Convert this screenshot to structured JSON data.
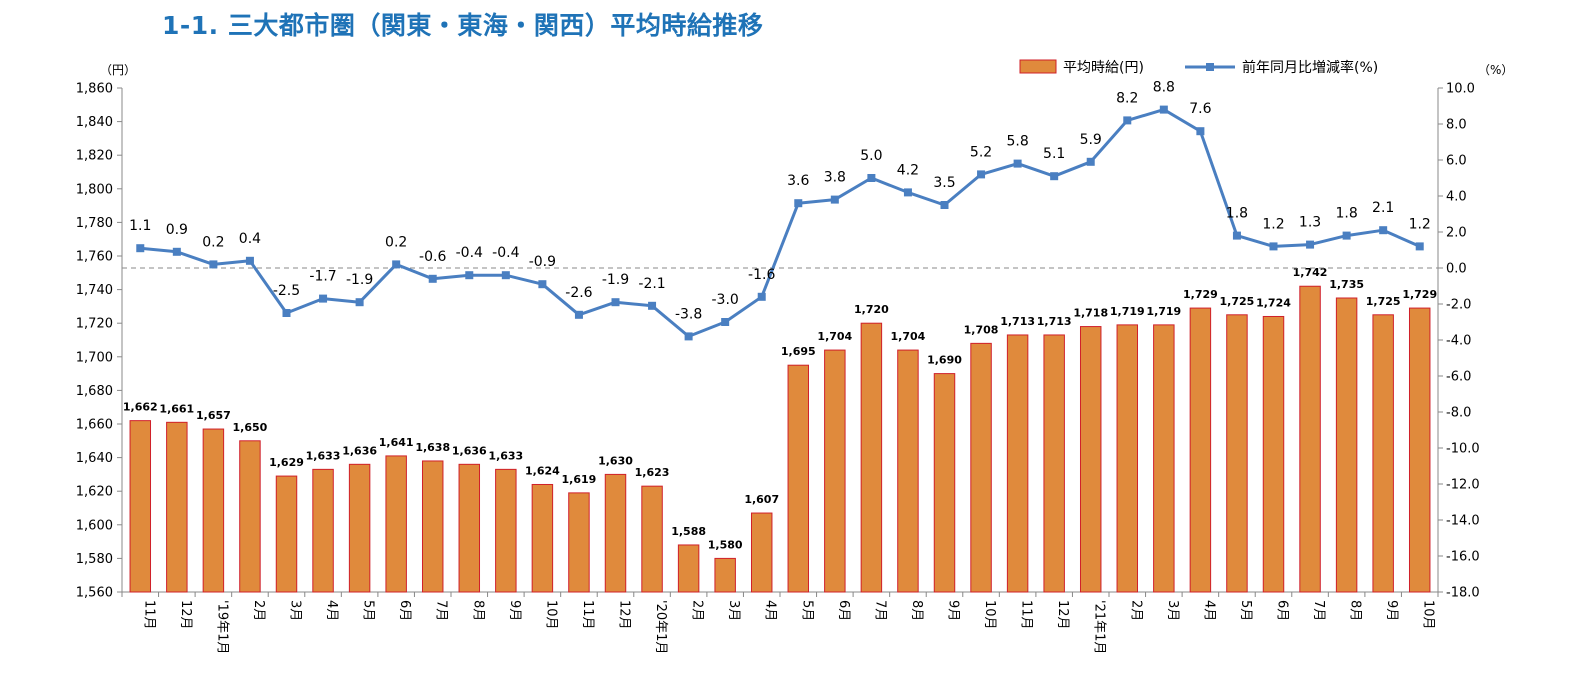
{
  "title": "1-1. 三大都市圏（関東・東海・関西）平均時給推移",
  "chart_data": {
    "type": "bar",
    "title": "1-1. 三大都市圏（関東・東海・関西）平均時給推移",
    "categories": [
      "11月",
      "12月",
      "'19年1月",
      "2月",
      "3月",
      "4月",
      "5月",
      "6月",
      "7月",
      "8月",
      "9月",
      "10月",
      "11月",
      "12月",
      "'20年1月",
      "2月",
      "3月",
      "4月",
      "5月",
      "6月",
      "7月",
      "8月",
      "9月",
      "10月",
      "11月",
      "12月",
      "'21年1月",
      "2月",
      "3月",
      "4月",
      "5月",
      "6月",
      "7月",
      "8月",
      "9月",
      "10月"
    ],
    "series": [
      {
        "name": "平均時給(円)",
        "type": "bar",
        "axis": "left",
        "color": "#e08a3c",
        "values": [
          1662,
          1661,
          1657,
          1650,
          1629,
          1633,
          1636,
          1641,
          1638,
          1636,
          1633,
          1624,
          1619,
          1630,
          1623,
          1588,
          1580,
          1607,
          1695,
          1704,
          1720,
          1704,
          1690,
          1708,
          1713,
          1713,
          1718,
          1719,
          1719,
          1729,
          1725,
          1724,
          1742,
          1735,
          1725,
          1729
        ],
        "labels": [
          "1,662",
          "1,661",
          "1,657",
          "1,650",
          "1,629",
          "1,633",
          "1,636",
          "1,641",
          "1,638",
          "1,636",
          "1,633",
          "1,624",
          "1,619",
          "1,630",
          "1,623",
          "1,588",
          "1,580",
          "1,607",
          "1,695",
          "1,704",
          "1,720",
          "1,704",
          "1,690",
          "1,708",
          "1,713",
          "1,713",
          "1,718",
          "1,719",
          "1,719",
          "1,729",
          "1,725",
          "1,724",
          "1,742",
          "1,735",
          "1,725",
          "1,729"
        ]
      },
      {
        "name": "前年同月比増減率(%)",
        "type": "line",
        "axis": "right",
        "color": "#4a7fc1",
        "values": [
          1.1,
          0.9,
          0.2,
          0.4,
          -2.5,
          -1.7,
          -1.9,
          0.2,
          -0.6,
          -0.4,
          -0.4,
          -0.9,
          -2.6,
          -1.9,
          -2.1,
          -3.8,
          -3.0,
          -1.6,
          3.6,
          3.8,
          5.0,
          4.2,
          3.5,
          5.2,
          5.8,
          5.1,
          5.9,
          8.2,
          8.8,
          7.6,
          1.8,
          1.2,
          1.3,
          1.8,
          2.1,
          1.2
        ],
        "labels": [
          "1.1",
          "0.9",
          "0.2",
          "0.4",
          "-2.5",
          "-1.7",
          "-1.9",
          "0.2",
          "-0.6",
          "-0.4",
          "-0.4",
          "-0.9",
          "-2.6",
          "-1.9",
          "-2.1",
          "-3.8",
          "-3.0",
          "-1.6",
          "3.6",
          "3.8",
          "5.0",
          "4.2",
          "3.5",
          "5.2",
          "5.8",
          "5.1",
          "5.9",
          "8.2",
          "8.8",
          "7.6",
          "1.8",
          "1.2",
          "1.3",
          "1.8",
          "2.1",
          "1.2"
        ]
      }
    ],
    "y_left": {
      "unit": "（円）",
      "min": 1560,
      "max": 1860,
      "step": 20,
      "ticks": [
        "1,560",
        "1,580",
        "1,600",
        "1,620",
        "1,640",
        "1,660",
        "1,680",
        "1,700",
        "1,720",
        "1,740",
        "1,760",
        "1,780",
        "1,800",
        "1,820",
        "1,840",
        "1,860"
      ]
    },
    "y_right": {
      "unit": "（%）",
      "min": -18,
      "max": 10,
      "step": 2,
      "ticks": [
        "-18.0",
        "-16.0",
        "-14.0",
        "-12.0",
        "-10.0",
        "-8.0",
        "-6.0",
        "-4.0",
        "-2.0",
        "0.0",
        "2.0",
        "4.0",
        "6.0",
        "8.0",
        "10.0"
      ]
    },
    "zero_line": "dashed",
    "legend_position": "top-right",
    "grid": false
  }
}
